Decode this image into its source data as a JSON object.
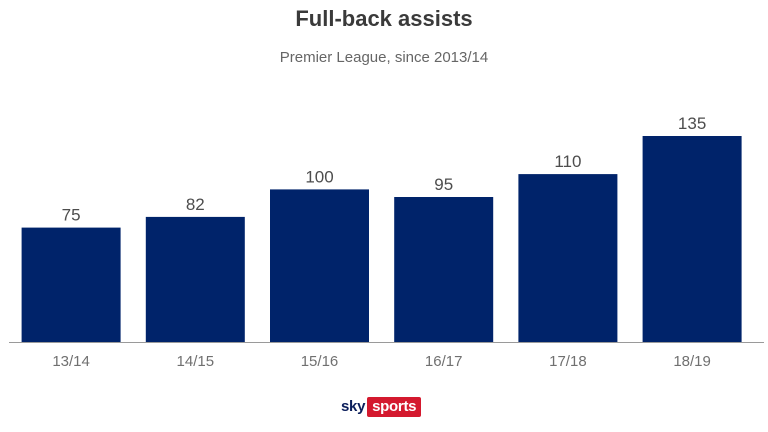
{
  "title": "Full-back assists",
  "subtitle": "Premier League, since 2013/14",
  "brand": {
    "sky": "sky",
    "sports": "sports",
    "red": "#d4192e",
    "navy": "#0b1e5b"
  },
  "chart_data": {
    "type": "bar",
    "title": "Full-back assists",
    "subtitle": "Premier League, since 2013/14",
    "categories": [
      "13/14",
      "14/15",
      "15/16",
      "16/17",
      "17/18",
      "18/19"
    ],
    "values": [
      75,
      82,
      100,
      95,
      110,
      135
    ],
    "bar_color": "#00236a",
    "data_labels": true,
    "grid": false,
    "ylim": [
      0,
      135
    ]
  }
}
